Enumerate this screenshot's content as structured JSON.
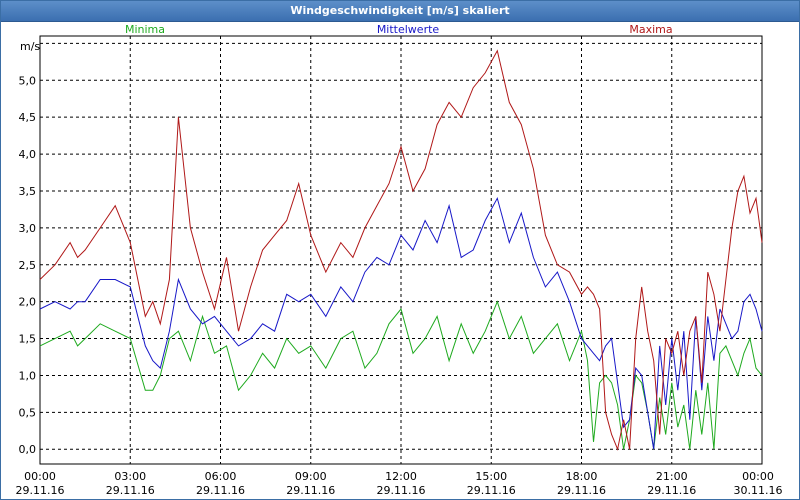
{
  "window": {
    "title": "Windgeschwindigkeit [m/s] skaliert"
  },
  "chart_data": {
    "type": "line",
    "title": "Windgeschwindigkeit [m/s] skaliert",
    "ylabel": "m/s",
    "xlabel": "",
    "ylim": [
      -0.2,
      5.6
    ],
    "xlim": [
      0,
      24
    ],
    "grid": true,
    "legend_position": "top",
    "yticks": [
      0,
      0.5,
      1,
      1.5,
      2,
      2.5,
      3,
      3.5,
      4,
      4.5,
      5
    ],
    "ytick_labels": [
      "0,0",
      "0,5",
      "1,0",
      "1,5",
      "2,0",
      "2,5",
      "3,0",
      "3,5",
      "4,0",
      "4,5",
      "5,0"
    ],
    "xticks": [
      0,
      3,
      6,
      9,
      12,
      15,
      18,
      21,
      24
    ],
    "xtick_times": [
      "00:00",
      "03:00",
      "06:00",
      "09:00",
      "12:00",
      "15:00",
      "18:00",
      "21:00",
      "00:00"
    ],
    "xtick_dates": [
      "29.11.16",
      "29.11.16",
      "29.11.16",
      "29.11.16",
      "29.11.16",
      "29.11.16",
      "29.11.16",
      "29.11.16",
      "30.11.16"
    ],
    "series": [
      {
        "name": "Minima",
        "color": "#1faa1f",
        "x": [
          0,
          0.5,
          1,
          1.25,
          1.5,
          2,
          2.5,
          3,
          3.5,
          3.75,
          4,
          4.3,
          4.6,
          5,
          5.4,
          5.8,
          6.2,
          6.6,
          7,
          7.4,
          7.8,
          8.2,
          8.6,
          9,
          9.5,
          10,
          10.4,
          10.8,
          11.2,
          11.6,
          12,
          12.4,
          12.8,
          13.2,
          13.6,
          14,
          14.4,
          14.8,
          15.2,
          15.6,
          16,
          16.4,
          16.8,
          17.2,
          17.6,
          18,
          18.2,
          18.4,
          18.6,
          18.8,
          19,
          19.2,
          19.4,
          19.6,
          19.8,
          20,
          20.2,
          20.4,
          20.6,
          20.8,
          21,
          21.2,
          21.4,
          21.6,
          21.8,
          22,
          22.2,
          22.4,
          22.6,
          22.8,
          23,
          23.2,
          23.4,
          23.6,
          23.8,
          24
        ],
        "values": [
          1.4,
          1.5,
          1.6,
          1.4,
          1.5,
          1.7,
          1.6,
          1.5,
          0.8,
          0.8,
          1.0,
          1.5,
          1.6,
          1.2,
          1.8,
          1.3,
          1.4,
          0.8,
          1.0,
          1.3,
          1.1,
          1.5,
          1.3,
          1.4,
          1.1,
          1.5,
          1.6,
          1.1,
          1.3,
          1.7,
          1.9,
          1.3,
          1.5,
          1.8,
          1.2,
          1.7,
          1.3,
          1.6,
          2.0,
          1.5,
          1.8,
          1.3,
          1.5,
          1.7,
          1.2,
          1.6,
          1.2,
          0.1,
          0.9,
          1.0,
          0.9,
          0.6,
          0.0,
          0.4,
          1.0,
          0.9,
          0.5,
          0.0,
          0.7,
          0.2,
          0.9,
          0.3,
          0.6,
          0.0,
          0.8,
          0.2,
          0.9,
          0.0,
          1.3,
          1.4,
          1.2,
          1.0,
          1.3,
          1.5,
          1.1,
          1.0
        ]
      },
      {
        "name": "Mittelwerte",
        "color": "#1818c8",
        "x": [
          0,
          0.5,
          1,
          1.25,
          1.5,
          2,
          2.5,
          3,
          3.5,
          3.75,
          4,
          4.3,
          4.6,
          5,
          5.4,
          5.8,
          6.2,
          6.6,
          7,
          7.4,
          7.8,
          8.2,
          8.6,
          9,
          9.5,
          10,
          10.4,
          10.8,
          11.2,
          11.6,
          12,
          12.4,
          12.8,
          13.2,
          13.6,
          14,
          14.4,
          14.8,
          15.2,
          15.6,
          16,
          16.4,
          16.8,
          17.2,
          17.6,
          18,
          18.2,
          18.4,
          18.6,
          18.8,
          19,
          19.2,
          19.4,
          19.6,
          19.8,
          20,
          20.2,
          20.4,
          20.6,
          20.8,
          21,
          21.2,
          21.4,
          21.6,
          21.8,
          22,
          22.2,
          22.4,
          22.6,
          22.8,
          23,
          23.2,
          23.4,
          23.6,
          23.8,
          24
        ],
        "values": [
          1.9,
          2.0,
          1.9,
          2.0,
          2.0,
          2.3,
          2.3,
          2.2,
          1.4,
          1.2,
          1.1,
          1.6,
          2.3,
          1.9,
          1.7,
          1.8,
          1.6,
          1.4,
          1.5,
          1.7,
          1.6,
          2.1,
          2.0,
          2.1,
          1.8,
          2.2,
          2.0,
          2.4,
          2.6,
          2.5,
          2.9,
          2.7,
          3.1,
          2.8,
          3.3,
          2.6,
          2.7,
          3.1,
          3.4,
          2.8,
          3.2,
          2.6,
          2.2,
          2.4,
          2.0,
          1.5,
          1.4,
          1.3,
          1.2,
          1.4,
          1.5,
          0.9,
          0.3,
          0.4,
          1.1,
          1.0,
          0.5,
          0.0,
          1.4,
          0.6,
          1.5,
          0.8,
          1.6,
          0.4,
          1.8,
          0.8,
          1.8,
          1.2,
          1.9,
          1.7,
          1.5,
          1.6,
          2.0,
          2.1,
          1.9,
          1.6
        ]
      },
      {
        "name": "Maxima",
        "color": "#b01818",
        "x": [
          0,
          0.5,
          1,
          1.25,
          1.5,
          2,
          2.5,
          3,
          3.5,
          3.75,
          4,
          4.3,
          4.6,
          5,
          5.4,
          5.8,
          6.2,
          6.6,
          7,
          7.4,
          7.8,
          8.2,
          8.6,
          9,
          9.5,
          10,
          10.4,
          10.8,
          11.2,
          11.6,
          12,
          12.4,
          12.8,
          13.2,
          13.6,
          14,
          14.4,
          14.8,
          15.2,
          15.6,
          16,
          16.4,
          16.8,
          17.2,
          17.6,
          18,
          18.2,
          18.4,
          18.6,
          18.8,
          19,
          19.2,
          19.4,
          19.6,
          19.8,
          20,
          20.2,
          20.4,
          20.6,
          20.8,
          21,
          21.2,
          21.4,
          21.6,
          21.8,
          22,
          22.2,
          22.4,
          22.6,
          22.8,
          23,
          23.2,
          23.4,
          23.6,
          23.8,
          24
        ],
        "values": [
          2.3,
          2.5,
          2.8,
          2.6,
          2.7,
          3.0,
          3.3,
          2.8,
          1.8,
          2.0,
          1.7,
          2.3,
          4.5,
          3.0,
          2.4,
          1.9,
          2.6,
          1.6,
          2.2,
          2.7,
          2.9,
          3.1,
          3.6,
          2.9,
          2.4,
          2.8,
          2.6,
          3.0,
          3.3,
          3.6,
          4.1,
          3.5,
          3.8,
          4.4,
          4.7,
          4.5,
          4.9,
          5.1,
          5.4,
          4.7,
          4.4,
          3.8,
          2.9,
          2.5,
          2.4,
          2.1,
          2.2,
          2.1,
          1.9,
          0.5,
          0.2,
          0.0,
          0.4,
          0.0,
          1.5,
          2.2,
          1.6,
          1.2,
          0.2,
          1.5,
          1.3,
          1.6,
          1.0,
          1.6,
          1.8,
          0.9,
          2.4,
          2.1,
          1.6,
          2.3,
          3.0,
          3.5,
          3.7,
          3.2,
          3.4,
          2.8
        ]
      }
    ]
  }
}
